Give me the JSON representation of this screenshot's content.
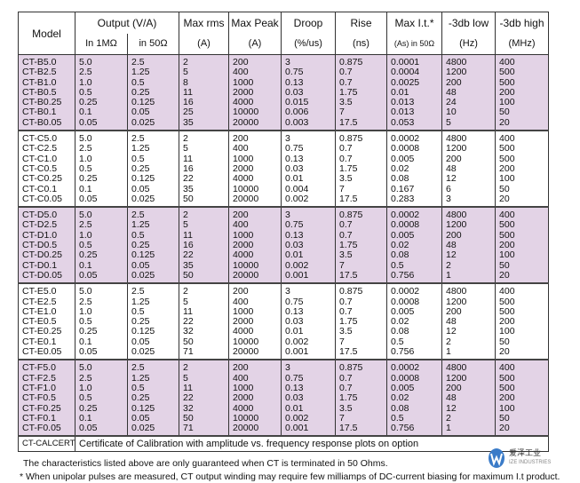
{
  "headers": {
    "model": "Model",
    "output": "Output (V/A)",
    "in1m": "In 1MΩ",
    "in50": "in 50Ω",
    "maxrms": "Max rms",
    "maxrms_u": "(A)",
    "maxpeak": "Max Peak",
    "maxpeak_u": "(A)",
    "droop": "Droop",
    "droop_u": "(%/us)",
    "rise": "Rise",
    "rise_u": "(ns)",
    "maxit": "Max I.t.*",
    "maxit_u": "(As) in 50Ω",
    "low": "-3db low",
    "low_u": "(Hz)",
    "high": "-3db high",
    "high_u": "(MHz)"
  },
  "groups": [
    {
      "shade": "pink",
      "cols": [
        [
          "CT-B5.0",
          "CT-B2.5",
          "CT-B1.0",
          "CT-B0.5",
          "CT-B0.25",
          "CT-B0.1",
          "CT-B0.05"
        ],
        [
          "5.0",
          "2.5",
          "1.0",
          "0.5",
          "0.25",
          "0.1",
          "0.05"
        ],
        [
          "2.5",
          "1.25",
          "0.5",
          "0.25",
          "0.125",
          "0.05",
          "0.025"
        ],
        [
          "2",
          "5",
          "8",
          "11",
          "16",
          "25",
          "35"
        ],
        [
          "200",
          "400",
          "1000",
          "2000",
          "4000",
          "10000",
          "20000"
        ],
        [
          "3",
          "0.75",
          "0.13",
          "0.03",
          "0.015",
          "0.006",
          "0.003"
        ],
        [
          "0.875",
          "0.7",
          "0.7",
          "1.75",
          "3.5",
          "7",
          "17.5"
        ],
        [
          "0.0001",
          "0.0004",
          "0.0025",
          "0.01",
          "0.013",
          "0.013",
          "0.053"
        ],
        [
          "4800",
          "1200",
          "200",
          "48",
          "24",
          "10",
          "5"
        ],
        [
          "400",
          "500",
          "500",
          "200",
          "100",
          "50",
          "20"
        ]
      ]
    },
    {
      "shade": "white",
      "cols": [
        [
          "CT-C5.0",
          "CT-C2.5",
          "CT-C1.0",
          "CT-C0.5",
          "CT-C0.25",
          "CT-C0.1",
          "CT-C0.05"
        ],
        [
          "5.0",
          "2.5",
          "1.0",
          "0.5",
          "0.25",
          "0.1",
          "0.05"
        ],
        [
          "2.5",
          "1.25",
          "0.5",
          "0.25",
          "0.125",
          "0.05",
          "0.025"
        ],
        [
          "2",
          "5",
          "11",
          "16",
          "22",
          "35",
          "50"
        ],
        [
          "200",
          "400",
          "1000",
          "2000",
          "4000",
          "10000",
          "20000"
        ],
        [
          "3",
          "0.75",
          "0.13",
          "0.03",
          "0.01",
          "0.004",
          "0.002"
        ],
        [
          "0.875",
          "0.7",
          "0.7",
          "1.75",
          "3.5",
          "7",
          "17.5"
        ],
        [
          "0.0002",
          "0.0008",
          "0.005",
          "0.02",
          "0.08",
          "0.167",
          "0.283"
        ],
        [
          "4800",
          "1200",
          "200",
          "48",
          "12",
          "6",
          "3"
        ],
        [
          "400",
          "500",
          "500",
          "200",
          "100",
          "50",
          "20"
        ]
      ]
    },
    {
      "shade": "pink",
      "cols": [
        [
          "CT-D5.0",
          "CT-D2.5",
          "CT-D1.0",
          "CT-D0.5",
          "CT-D0.25",
          "CT-D0.1",
          "CT-D0.05"
        ],
        [
          "5.0",
          "2.5",
          "1.0",
          "0.5",
          "0.25",
          "0.1",
          "0.05"
        ],
        [
          "2.5",
          "1.25",
          "0.5",
          "0.25",
          "0.125",
          "0.05",
          "0.025"
        ],
        [
          "2",
          "5",
          "11",
          "16",
          "22",
          "35",
          "50"
        ],
        [
          "200",
          "400",
          "1000",
          "2000",
          "4000",
          "10000",
          "20000"
        ],
        [
          "3",
          "0.75",
          "0.13",
          "0.03",
          "0.01",
          "0.002",
          "0.001"
        ],
        [
          "0.875",
          "0.7",
          "0.7",
          "1.75",
          "3.5",
          "7",
          "17.5"
        ],
        [
          "0.0002",
          "0.0008",
          "0.005",
          "0.02",
          "0.08",
          "0.5",
          "0.756"
        ],
        [
          "4800",
          "1200",
          "200",
          "48",
          "12",
          "2",
          "1"
        ],
        [
          "400",
          "500",
          "500",
          "200",
          "100",
          "50",
          "20"
        ]
      ]
    },
    {
      "shade": "white",
      "cols": [
        [
          "CT-E5.0",
          "CT-E2.5",
          "CT-E1.0",
          "CT-E0.5",
          "CT-E0.25",
          "CT-E0.1",
          "CT-E0.05"
        ],
        [
          "5.0",
          "2.5",
          "1.0",
          "0.5",
          "0.25",
          "0.1",
          "0.05"
        ],
        [
          "2.5",
          "1.25",
          "0.5",
          "0.25",
          "0.125",
          "0.05",
          "0.025"
        ],
        [
          "2",
          "5",
          "11",
          "22",
          "32",
          "50",
          "71"
        ],
        [
          "200",
          "400",
          "1000",
          "2000",
          "4000",
          "10000",
          "20000"
        ],
        [
          "3",
          "0.75",
          "0.13",
          "0.03",
          "0.01",
          "0.002",
          "0.001"
        ],
        [
          "0.875",
          "0.7",
          "0.7",
          "1.75",
          "3.5",
          "7",
          "17.5"
        ],
        [
          "0.0002",
          "0.0008",
          "0.005",
          "0.02",
          "0.08",
          "0.5",
          "0.756"
        ],
        [
          "4800",
          "1200",
          "200",
          "48",
          "12",
          "2",
          "1"
        ],
        [
          "400",
          "500",
          "500",
          "200",
          "100",
          "50",
          "20"
        ]
      ]
    },
    {
      "shade": "pink",
      "cols": [
        [
          "CT-F5.0",
          "CT-F2.5",
          "CT-F1.0",
          "CT-F0.5",
          "CT-F0.25",
          "CT-F0.1",
          "CT-F0.05"
        ],
        [
          "5.0",
          "2.5",
          "1.0",
          "0.5",
          "0.25",
          "0.1",
          "0.05"
        ],
        [
          "2.5",
          "1.25",
          "0.5",
          "0.25",
          "0.125",
          "0.05",
          "0.025"
        ],
        [
          "2",
          "5",
          "11",
          "22",
          "32",
          "50",
          "71"
        ],
        [
          "200",
          "400",
          "1000",
          "2000",
          "4000",
          "10000",
          "20000"
        ],
        [
          "3",
          "0.75",
          "0.13",
          "0.03",
          "0.01",
          "0.002",
          "0.001"
        ],
        [
          "0.875",
          "0.7",
          "0.7",
          "1.75",
          "3.5",
          "7",
          "17.5"
        ],
        [
          "0.0002",
          "0.0008",
          "0.005",
          "0.02",
          "0.08",
          "0.5",
          "0.756"
        ],
        [
          "4800",
          "1200",
          "200",
          "48",
          "12",
          "2",
          "1"
        ],
        [
          "400",
          "500",
          "500",
          "200",
          "100",
          "50",
          "20"
        ]
      ]
    }
  ],
  "calcert": {
    "model": "CT-CALCERT",
    "desc": "Certificate of Calibration with amplitude vs. frequency response plots on option"
  },
  "notes": [
    "The characteristics listed above are only guaranteed when CT is terminated in 50 Ohms.",
    "* When unipolar pulses are measured, CT output winding may require few milliamps of DC-current biasing for maximum I.t product."
  ],
  "logo": {
    "cn": "爱泽工业",
    "en": "IZE INDUSTRIES",
    "color": "#3a7bc8"
  }
}
